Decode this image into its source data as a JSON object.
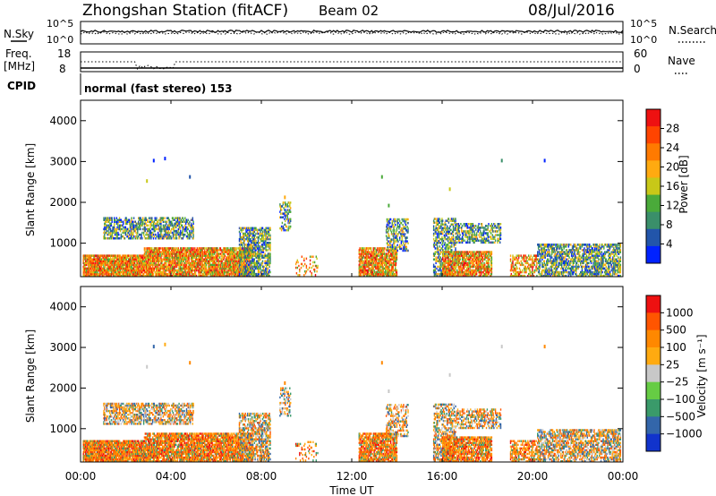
{
  "header": {
    "title": "Zhongshan Station (fitACF)",
    "beam": "Beam 02",
    "date": "08/Jul/2016"
  },
  "top_panel": {
    "left_label": "N.Sky",
    "right_label": "N.Search",
    "ticks_left": [
      "10^5",
      "10^0"
    ],
    "ticks_right": [
      "10^5",
      "10^0"
    ]
  },
  "freq_panel": {
    "left_label_line1": "Freq.",
    "left_label_line2": "[MHz]",
    "right_label": "Nave",
    "ticks_left": [
      "18",
      "8"
    ],
    "ticks_right": [
      "60",
      "0"
    ]
  },
  "cpid": {
    "label": "CPID",
    "value": "normal (fast stereo) 153"
  },
  "x_axis": {
    "label": "Time UT",
    "ticks": [
      "00:00",
      "04:00",
      "08:00",
      "12:00",
      "16:00",
      "20:00",
      "00:00"
    ]
  },
  "chart_data": [
    {
      "type": "heatmap",
      "title": "",
      "xlabel": "Time UT",
      "ylabel": "Slant Range [km]",
      "x_range_hours": [
        0,
        24
      ],
      "ylim": [
        180,
        4500
      ],
      "y_ticks": [
        "1000",
        "2000",
        "3000",
        "4000"
      ],
      "y_tick_values": [
        1000,
        2000,
        3000,
        4000
      ],
      "colorbar": {
        "label": "Power [dB]",
        "ticks": [
          "4",
          "8",
          "12",
          "16",
          "20",
          "24",
          "28"
        ],
        "range": [
          0,
          30
        ],
        "colors": [
          "#0022ff",
          "#2255aa",
          "#3a8f6a",
          "#4aaa3a",
          "#c8c818",
          "#ffaa10",
          "#ff7a00",
          "#ff4400",
          "#ee1111"
        ]
      }
    },
    {
      "type": "heatmap",
      "title": "",
      "xlabel": "Time UT",
      "ylabel": "Slant Range [km]",
      "x_range_hours": [
        0,
        24
      ],
      "ylim": [
        180,
        4500
      ],
      "y_ticks": [
        "1000",
        "2000",
        "3000",
        "4000"
      ],
      "y_tick_values": [
        1000,
        2000,
        3000,
        4000
      ],
      "colorbar": {
        "label": "Velocity [m s⁻¹]",
        "ticks": [
          "1000",
          "500",
          "100",
          "25",
          "−25",
          "−100",
          "−500",
          "−1000"
        ],
        "colors": [
          "#1133cc",
          "#3366aa",
          "#3a9a6a",
          "#66cc44",
          "#c8c8c8",
          "#ffaa10",
          "#ff8800",
          "#ff5500",
          "#ee1111"
        ]
      }
    }
  ]
}
